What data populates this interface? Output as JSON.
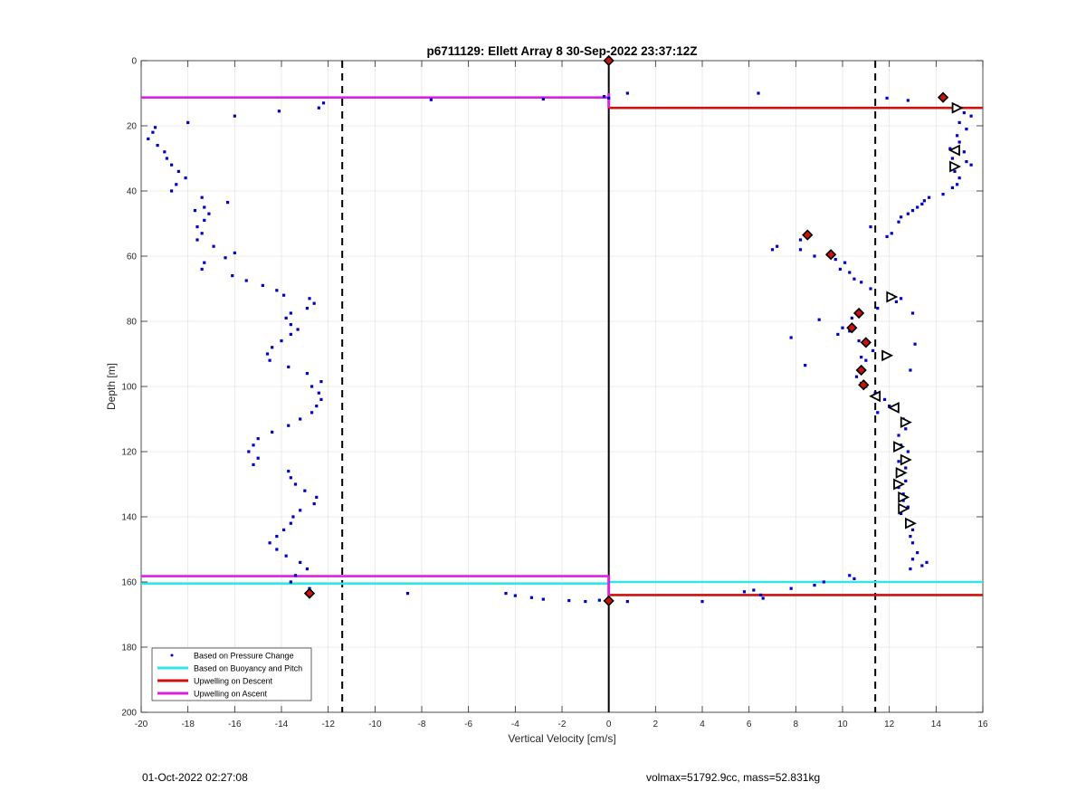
{
  "footer": {
    "date": "01-Oct-2022 02:27:08",
    "info": "volmax=51792.9cc, mass=52.831kg"
  },
  "colors": {
    "pressure": "#0000cc",
    "buoyancy": "#33e6e6",
    "descent": "#cc1111",
    "ascent": "#dd22dd",
    "zero_line": "#000000",
    "threshold_line": "#000000"
  },
  "chart_data": {
    "type": "scatter",
    "title": "p6711129: Ellett Array 8 30-Sep-2022 23:37:12Z",
    "xlabel": "Vertical Velocity [cm/s]",
    "ylabel": "Depth [m]",
    "xlim": [
      -20,
      16
    ],
    "ylim": [
      0,
      200
    ],
    "y_reversed": true,
    "grid": true,
    "xticks": [
      -20,
      -18,
      -16,
      -14,
      -12,
      -10,
      -8,
      -6,
      -4,
      -2,
      0,
      2,
      4,
      6,
      8,
      10,
      12,
      14,
      16
    ],
    "yticks": [
      0,
      20,
      40,
      60,
      80,
      100,
      120,
      140,
      160,
      180,
      200
    ],
    "legend_position": "bottom-left",
    "legend": [
      "Based on Pressure Change",
      "Based on Buoyancy and Pitch",
      "Upwelling on Descent",
      "Upwelling on Ascent"
    ],
    "threshold_lines_x": [
      -11.4,
      11.4
    ],
    "zero_line_x": 0,
    "descent_segments": [
      {
        "depth": 0,
        "x_min": 0,
        "x_max": 0
      },
      {
        "depth": 14.5,
        "x_min": 0,
        "x_max": 16
      },
      {
        "depth": 164,
        "x_min": 0,
        "x_max": 16
      }
    ],
    "ascent_segments": [
      {
        "depth": 11.3,
        "x_min": -20,
        "x_max": 0
      },
      {
        "depth": 158.2,
        "x_min": -20,
        "x_max": 0
      }
    ],
    "buoyancy_segments": [
      {
        "depth": 160.5,
        "x_min": -20,
        "x_max": 0
      },
      {
        "depth": 160,
        "x_min": 0,
        "x_max": 16
      }
    ],
    "pressure_points": {
      "descent": [
        [
          0.8,
          10
        ],
        [
          6.4,
          10
        ],
        [
          11.9,
          11.5
        ],
        [
          12.8,
          12.2
        ],
        [
          14.4,
          11.5
        ],
        [
          14.9,
          14
        ],
        [
          15.2,
          16
        ],
        [
          15.5,
          17
        ],
        [
          15.0,
          19
        ],
        [
          15.3,
          21
        ],
        [
          14.9,
          23
        ],
        [
          15.0,
          25
        ],
        [
          14.6,
          27
        ],
        [
          15.2,
          28
        ],
        [
          14.7,
          30
        ],
        [
          15.3,
          31
        ],
        [
          15.5,
          32
        ],
        [
          14.8,
          34
        ],
        [
          15.0,
          36
        ],
        [
          14.9,
          38
        ],
        [
          14.7,
          39
        ],
        [
          14.3,
          41
        ],
        [
          13.7,
          42
        ],
        [
          13.5,
          43
        ],
        [
          13.4,
          44
        ],
        [
          13.2,
          45
        ],
        [
          13.0,
          46
        ],
        [
          12.8,
          47
        ],
        [
          12.5,
          48
        ],
        [
          12.4,
          49.5
        ],
        [
          11.2,
          51
        ],
        [
          12.1,
          53
        ],
        [
          11.9,
          54
        ],
        [
          8.5,
          53.5
        ],
        [
          8.2,
          55
        ],
        [
          7.2,
          57
        ],
        [
          7.0,
          58
        ],
        [
          8.2,
          58
        ],
        [
          8.8,
          60
        ],
        [
          9.5,
          59
        ],
        [
          9.7,
          61
        ],
        [
          10.1,
          62
        ],
        [
          9.9,
          64
        ],
        [
          10.3,
          65
        ],
        [
          10.5,
          67
        ],
        [
          10.8,
          68
        ],
        [
          11.2,
          70
        ],
        [
          12.1,
          72
        ],
        [
          12.3,
          74
        ],
        [
          12.5,
          73
        ],
        [
          11.5,
          76
        ],
        [
          13.0,
          77.5
        ],
        [
          10.7,
          78
        ],
        [
          10.4,
          79
        ],
        [
          9.0,
          79.5
        ],
        [
          10.0,
          82
        ],
        [
          10.3,
          83
        ],
        [
          9.8,
          84
        ],
        [
          7.8,
          85
        ],
        [
          10.7,
          86
        ],
        [
          11.0,
          87
        ],
        [
          13.1,
          87
        ],
        [
          11.3,
          89
        ],
        [
          10.8,
          91
        ],
        [
          11.0,
          92
        ],
        [
          8.4,
          93.5
        ],
        [
          10.9,
          95
        ],
        [
          12.9,
          95
        ],
        [
          10.6,
          97
        ],
        [
          10.8,
          99
        ],
        [
          11.0,
          100
        ],
        [
          11.4,
          102
        ],
        [
          11.8,
          104
        ],
        [
          12.0,
          106
        ],
        [
          11.5,
          108
        ],
        [
          12.6,
          110
        ],
        [
          12.7,
          113
        ],
        [
          12.4,
          115
        ],
        [
          12.5,
          118
        ],
        [
          12.8,
          120
        ],
        [
          12.4,
          123
        ],
        [
          12.7,
          125
        ],
        [
          12.5,
          127
        ],
        [
          12.7,
          129
        ],
        [
          12.4,
          131
        ],
        [
          12.6,
          133
        ],
        [
          12.6,
          135
        ],
        [
          12.8,
          137
        ],
        [
          12.5,
          139
        ],
        [
          12.9,
          142
        ],
        [
          13.0,
          144
        ],
        [
          12.9,
          146
        ],
        [
          13.0,
          148
        ],
        [
          13.2,
          151
        ],
        [
          13.0,
          153
        ],
        [
          13.6,
          154
        ],
        [
          13.4,
          155
        ],
        [
          12.9,
          156
        ],
        [
          10.3,
          158
        ],
        [
          10.5,
          159
        ],
        [
          9.2,
          160
        ],
        [
          8.8,
          161
        ],
        [
          7.8,
          162
        ],
        [
          5.8,
          163
        ],
        [
          6.2,
          162.5
        ],
        [
          6.5,
          164
        ],
        [
          6.6,
          165
        ],
        [
          4.0,
          166
        ],
        [
          0.8,
          166
        ]
      ],
      "ascent": [
        [
          -12.2,
          13
        ],
        [
          -12.4,
          14.5
        ],
        [
          -14.1,
          15.5
        ],
        [
          -16.0,
          17
        ],
        [
          -18.0,
          19
        ],
        [
          -19.4,
          20.5
        ],
        [
          -19.5,
          22
        ],
        [
          -19.7,
          24
        ],
        [
          -19.3,
          26
        ],
        [
          -19.0,
          28
        ],
        [
          -18.9,
          30
        ],
        [
          -18.7,
          32
        ],
        [
          -18.4,
          34
        ],
        [
          -18.1,
          36
        ],
        [
          -18.5,
          38
        ],
        [
          -18.7,
          40
        ],
        [
          -17.4,
          42
        ],
        [
          -16.3,
          43.5
        ],
        [
          -17.3,
          45
        ],
        [
          -17.7,
          46
        ],
        [
          -17.1,
          47
        ],
        [
          -17.3,
          49
        ],
        [
          -17.6,
          51
        ],
        [
          -17.4,
          53
        ],
        [
          -17.6,
          55
        ],
        [
          -16.9,
          57
        ],
        [
          -16.0,
          59
        ],
        [
          -16.4,
          60.5
        ],
        [
          -17.3,
          62
        ],
        [
          -17.4,
          64
        ],
        [
          -16.1,
          66
        ],
        [
          -15.5,
          67.5
        ],
        [
          -14.8,
          69
        ],
        [
          -14.2,
          70.5
        ],
        [
          -13.9,
          72
        ],
        [
          -12.8,
          73
        ],
        [
          -12.6,
          74.5
        ],
        [
          -12.9,
          76
        ],
        [
          -13.6,
          77.5
        ],
        [
          -13.8,
          79
        ],
        [
          -13.6,
          81
        ],
        [
          -13.3,
          82.5
        ],
        [
          -13.6,
          84
        ],
        [
          -14.0,
          86
        ],
        [
          -14.4,
          88
        ],
        [
          -14.6,
          90
        ],
        [
          -14.5,
          92
        ],
        [
          -13.7,
          94
        ],
        [
          -12.9,
          96
        ],
        [
          -12.3,
          98.5
        ],
        [
          -12.7,
          100
        ],
        [
          -12.4,
          102
        ],
        [
          -12.3,
          104
        ],
        [
          -12.5,
          106
        ],
        [
          -12.7,
          108
        ],
        [
          -13.2,
          110
        ],
        [
          -13.7,
          112
        ],
        [
          -14.4,
          114
        ],
        [
          -15.0,
          116
        ],
        [
          -15.2,
          118
        ],
        [
          -15.4,
          120
        ],
        [
          -15.0,
          122
        ],
        [
          -15.2,
          124
        ],
        [
          -13.7,
          126
        ],
        [
          -13.6,
          128
        ],
        [
          -13.4,
          130
        ],
        [
          -13.0,
          132
        ],
        [
          -12.5,
          134
        ],
        [
          -12.6,
          136
        ],
        [
          -13.2,
          138
        ],
        [
          -13.5,
          140
        ],
        [
          -13.6,
          142
        ],
        [
          -13.9,
          144
        ],
        [
          -14.2,
          146
        ],
        [
          -14.5,
          148
        ],
        [
          -14.2,
          150
        ],
        [
          -13.8,
          152
        ],
        [
          -13.2,
          154
        ],
        [
          -12.9,
          156
        ],
        [
          -13.4,
          158
        ],
        [
          -13.6,
          160
        ],
        [
          -12.8,
          162
        ],
        [
          -8.6,
          163.5
        ],
        [
          -4.4,
          163.5
        ],
        [
          -4.0,
          164.2
        ],
        [
          -3.3,
          164.8
        ],
        [
          -2.8,
          165.3
        ],
        [
          -1.7,
          165.7
        ],
        [
          -1.0,
          166
        ],
        [
          -0.4,
          165.6
        ],
        [
          -7.6,
          12
        ],
        [
          -2.8,
          11.8
        ],
        [
          -0.2,
          11
        ],
        [
          0.0,
          11.5
        ],
        [
          0.0,
          165
        ]
      ]
    },
    "flagged_points": [
      [
        0,
        0
      ],
      [
        14.3,
        11.3
      ],
      [
        8.5,
        53.5
      ],
      [
        9.5,
        59.5
      ],
      [
        10.7,
        77.5
      ],
      [
        10.4,
        82
      ],
      [
        11.0,
        86.5
      ],
      [
        10.8,
        95
      ],
      [
        10.9,
        99.5
      ],
      [
        -12.8,
        163.5
      ],
      [
        0,
        165.8
      ]
    ],
    "triangle_markers": [
      {
        "x": 14.9,
        "depth": 14.5,
        "dir": "right"
      },
      {
        "x": 14.8,
        "depth": 27.5,
        "dir": "left"
      },
      {
        "x": 14.8,
        "depth": 32.5,
        "dir": "right"
      },
      {
        "x": 12.1,
        "depth": 72.5,
        "dir": "right"
      },
      {
        "x": 11.9,
        "depth": 90.5,
        "dir": "right"
      },
      {
        "x": 11.4,
        "depth": 103,
        "dir": "left"
      },
      {
        "x": 12.2,
        "depth": 106.5,
        "dir": "left"
      },
      {
        "x": 12.7,
        "depth": 111,
        "dir": "right"
      },
      {
        "x": 12.4,
        "depth": 118.5,
        "dir": "right"
      },
      {
        "x": 12.7,
        "depth": 122.5,
        "dir": "right"
      },
      {
        "x": 12.5,
        "depth": 126.5,
        "dir": "right"
      },
      {
        "x": 12.4,
        "depth": 130,
        "dir": "right"
      },
      {
        "x": 12.6,
        "depth": 134,
        "dir": "right"
      },
      {
        "x": 12.6,
        "depth": 137.5,
        "dir": "right"
      },
      {
        "x": 12.9,
        "depth": 142,
        "dir": "right"
      }
    ]
  }
}
